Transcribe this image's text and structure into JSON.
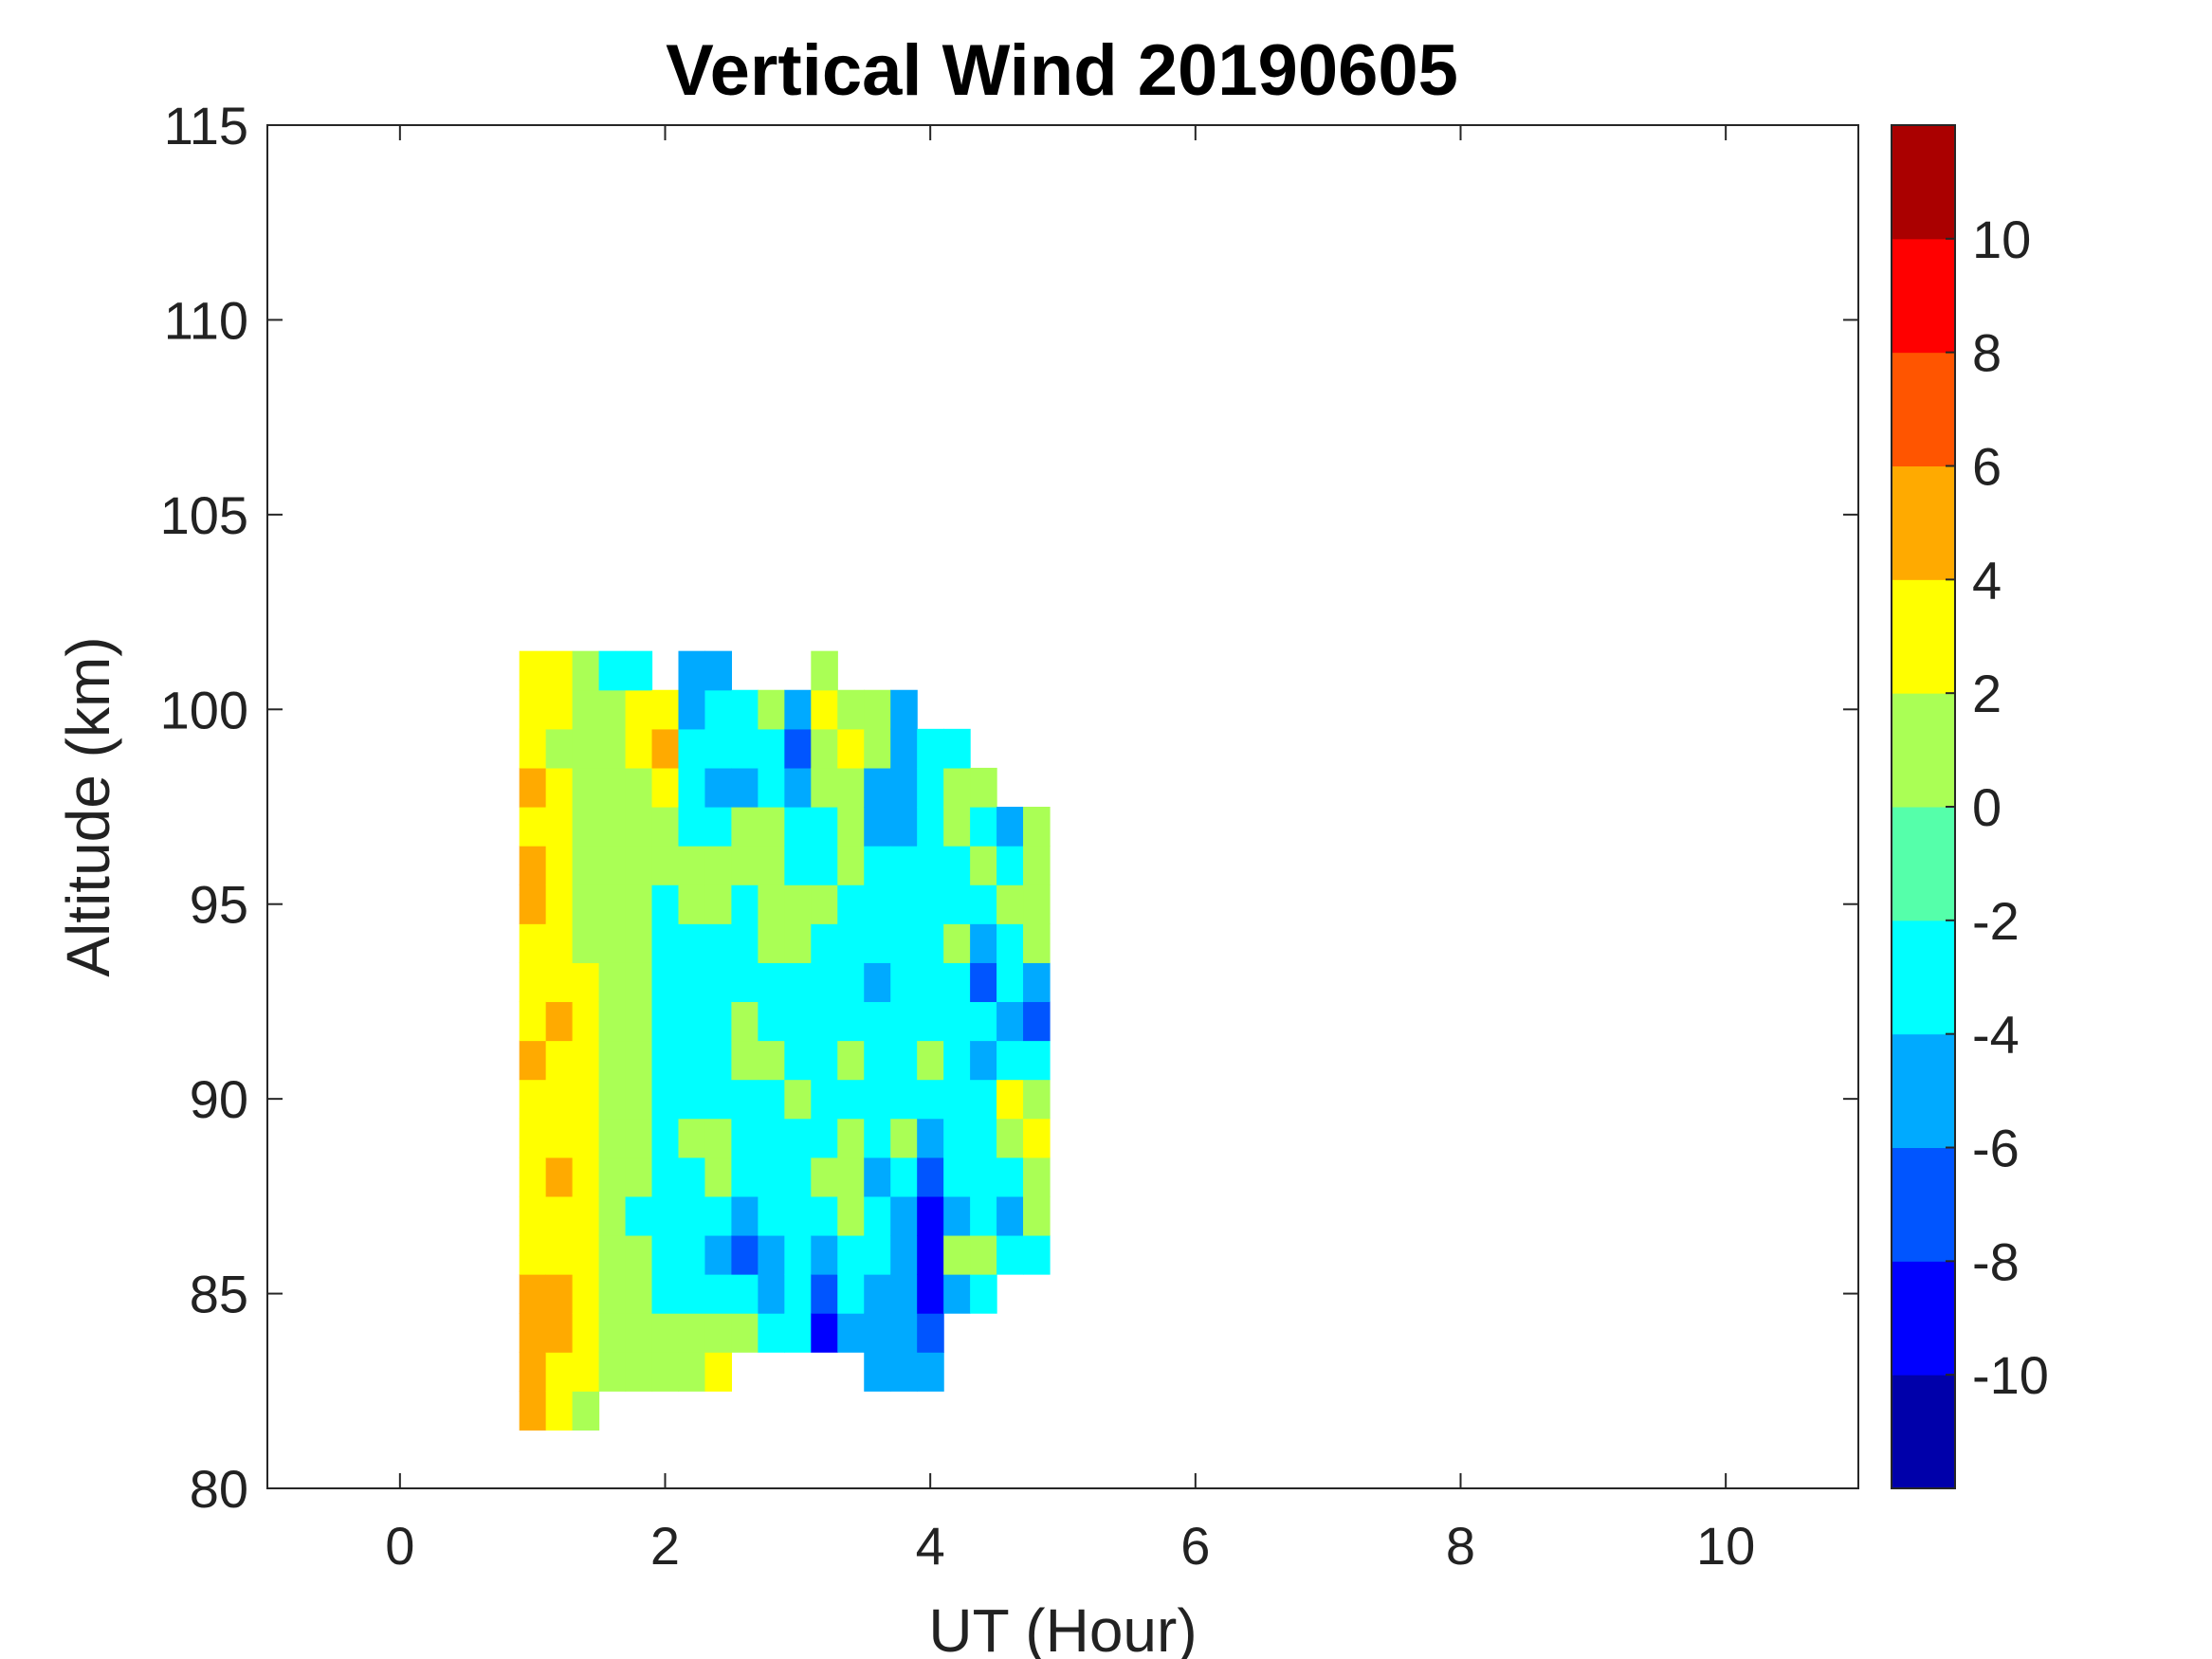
{
  "chart_data": {
    "type": "heatmap",
    "subtype": "filled-contour",
    "title": "Vertical Wind 20190605",
    "xlabel": "UT (Hour)",
    "ylabel": "Altitude (km)",
    "xlim": [
      -1,
      11
    ],
    "ylim": [
      80,
      115
    ],
    "xticks": [
      0,
      2,
      4,
      6,
      8,
      10
    ],
    "yticks": [
      80,
      85,
      90,
      95,
      100,
      105,
      110,
      115
    ],
    "colorbar": {
      "range": [
        -12,
        12
      ],
      "ticks": [
        -10,
        -8,
        -6,
        -4,
        -2,
        0,
        2,
        4,
        6,
        8,
        10
      ],
      "levels": [
        -12,
        -10,
        -8,
        -6,
        -4,
        -2,
        0,
        2,
        4,
        6,
        8,
        10,
        12
      ],
      "colors": [
        "#0000aa",
        "#0000ff",
        "#0055ff",
        "#00aaff",
        "#00ffff",
        "#55ffaa",
        "#aaff55",
        "#ffff00",
        "#ffaa00",
        "#ff5500",
        "#ff0000",
        "#aa0000"
      ]
    },
    "grid": {
      "x": [
        1.0,
        1.2,
        1.4,
        1.6,
        1.8,
        2.0,
        2.2,
        2.4,
        2.6,
        2.8,
        3.0,
        3.2,
        3.4,
        3.6,
        3.8,
        4.0,
        4.2,
        4.4,
        4.6,
        4.8
      ],
      "y": [
        82,
        83,
        84,
        85,
        86,
        87,
        88,
        89,
        90,
        91,
        92,
        93,
        94,
        95,
        96,
        97,
        98,
        99,
        100,
        101
      ],
      "values_by_x": [
        [
          5,
          5,
          5,
          5,
          3,
          3,
          3,
          3,
          3,
          5,
          3,
          3,
          3,
          5,
          5,
          3,
          5,
          3,
          3,
          3
        ],
        [
          3,
          3,
          5,
          5,
          3,
          3,
          5,
          3,
          3,
          3,
          5,
          3,
          3,
          3,
          3,
          3,
          3,
          1,
          3,
          3
        ],
        [
          1,
          3,
          3,
          3,
          3,
          3,
          3,
          3,
          3,
          3,
          3,
          3,
          1,
          1,
          1,
          1,
          1,
          1,
          1,
          1
        ],
        [
          null,
          1,
          1,
          1,
          1,
          1,
          1,
          1,
          1,
          1,
          1,
          1,
          1,
          1,
          1,
          1,
          1,
          1,
          1,
          -3
        ],
        [
          null,
          1,
          1,
          1,
          1,
          -3,
          1,
          1,
          1,
          1,
          1,
          1,
          1,
          1,
          1,
          1,
          1,
          3,
          3,
          -3
        ],
        [
          null,
          1,
          1,
          -3,
          -3,
          -3,
          -3,
          -3,
          -3,
          -3,
          -3,
          -3,
          -3,
          -3,
          1,
          1,
          3,
          5,
          3,
          null
        ],
        [
          null,
          1,
          1,
          -3,
          -3,
          -3,
          -3,
          1,
          -3,
          -3,
          -3,
          -3,
          -3,
          1,
          1,
          -3,
          -3,
          -3,
          -5,
          -5
        ],
        [
          null,
          3,
          1,
          -3,
          -5,
          -3,
          1,
          1,
          -3,
          -3,
          -3,
          -3,
          -3,
          1,
          1,
          -3,
          -5,
          -3,
          -3,
          -5
        ],
        [
          null,
          null,
          1,
          -3,
          -7,
          -5,
          -3,
          -3,
          -3,
          1,
          1,
          -3,
          -3,
          -3,
          1,
          1,
          -5,
          -3,
          -3,
          null
        ],
        [
          null,
          null,
          -3,
          -5,
          -5,
          -3,
          -3,
          -3,
          -3,
          1,
          -3,
          -3,
          1,
          1,
          1,
          1,
          -3,
          -3,
          1,
          null
        ],
        [
          null,
          null,
          -3,
          -3,
          -3,
          -3,
          -3,
          -3,
          1,
          -3,
          -3,
          -3,
          1,
          1,
          -3,
          -3,
          -5,
          -7,
          -5,
          null
        ],
        [
          null,
          null,
          -9,
          -7,
          -5,
          -3,
          1,
          -3,
          -3,
          -3,
          -3,
          -3,
          -3,
          1,
          -3,
          -3,
          1,
          1,
          3,
          1
        ],
        [
          null,
          null,
          -5,
          -3,
          -3,
          1,
          1,
          1,
          -3,
          1,
          -3,
          -3,
          -3,
          -3,
          1,
          1,
          1,
          3,
          1,
          null
        ],
        [
          null,
          -5,
          -5,
          -5,
          -3,
          -3,
          -5,
          -3,
          -3,
          -3,
          -3,
          -5,
          -3,
          -3,
          -3,
          -5,
          -5,
          1,
          1,
          null
        ],
        [
          null,
          -5,
          -5,
          -5,
          -5,
          -5,
          -3,
          1,
          -3,
          -3,
          -3,
          -3,
          -3,
          -3,
          -3,
          -5,
          -5,
          -5,
          -5,
          null
        ],
        [
          null,
          -5,
          -7,
          -9,
          -9,
          -9,
          -7,
          -5,
          -3,
          1,
          -3,
          -3,
          -3,
          -3,
          -3,
          -3,
          -3,
          -3,
          null,
          null
        ],
        [
          null,
          null,
          null,
          -5,
          1,
          -5,
          -3,
          -3,
          -3,
          -3,
          -3,
          -3,
          1,
          -3,
          -3,
          1,
          1,
          -3,
          null,
          null
        ],
        [
          null,
          null,
          null,
          -3,
          1,
          -3,
          -3,
          -3,
          -3,
          -5,
          -3,
          -7,
          -5,
          -3,
          1,
          -3,
          1,
          null,
          null,
          null
        ],
        [
          null,
          null,
          null,
          null,
          -3,
          -5,
          -3,
          1,
          3,
          -3,
          -5,
          -3,
          -3,
          1,
          -3,
          -5,
          null,
          null,
          null,
          null
        ],
        [
          null,
          null,
          null,
          null,
          -3,
          1,
          1,
          3,
          1,
          -3,
          -7,
          -5,
          1,
          1,
          1,
          1,
          null,
          null,
          null,
          null
        ]
      ]
    }
  }
}
